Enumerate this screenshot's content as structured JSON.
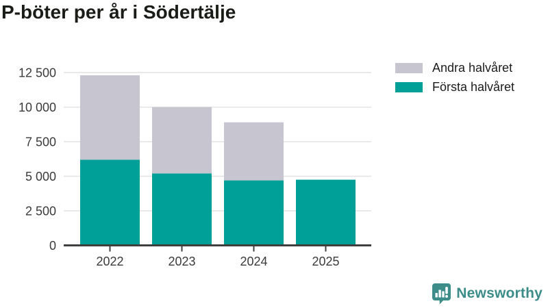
{
  "title": "P-böter per år i Södertälje",
  "chart_data": {
    "type": "bar",
    "stacked": true,
    "title": "P-böter per år i Södertälje",
    "categories": [
      "2022",
      "2023",
      "2024",
      "2025"
    ],
    "series": [
      {
        "name": "Första halvåret",
        "color": "#00a099",
        "values": [
          6200,
          5200,
          4700,
          4750
        ]
      },
      {
        "name": "Andra halvåret",
        "color": "#c7c5d0",
        "values": [
          6100,
          4800,
          4200,
          0
        ]
      }
    ],
    "xlabel": "",
    "ylabel": "",
    "ylim": [
      0,
      12500
    ],
    "yticks": [
      0,
      2500,
      5000,
      7500,
      10000,
      12500
    ],
    "ytick_labels": [
      "0",
      "2 500",
      "5 000",
      "7 500",
      "10 000",
      "12 500"
    ],
    "grid": true,
    "legend_position": "top-right"
  },
  "legend": {
    "items": [
      {
        "label": "Andra halvåret",
        "color": "#c7c5d0"
      },
      {
        "label": "Första halvåret",
        "color": "#00a099"
      }
    ]
  },
  "branding": {
    "name": "Newsworthy",
    "color": "#3c8d8a",
    "icon": "bar-chart-speech-bubble-icon"
  },
  "colors": {
    "first_half": "#00a099",
    "second_half": "#c7c5d0",
    "axis": "#3f3f3f",
    "grid": "#e2e2e2",
    "tick_text": "#3a3a3a",
    "title_text": "#191c17"
  }
}
